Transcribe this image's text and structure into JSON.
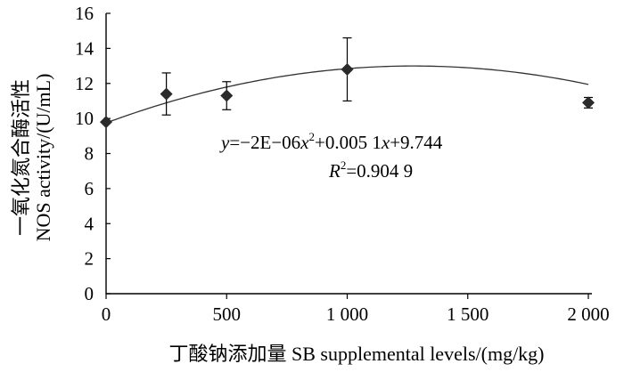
{
  "chart_data": {
    "type": "scatter",
    "xlabel": "丁酸钠添加量  SB supplemental levels/(mg/kg)",
    "ylabel_line1": "一氧化氮合酶活性",
    "ylabel_line2": "NOS activity/(U/mL)",
    "xlim": [
      0,
      2000
    ],
    "ylim": [
      0,
      16
    ],
    "x_ticks": [
      0,
      500,
      1000,
      1500,
      2000
    ],
    "x_tick_labels": [
      "0",
      "500",
      "1 000",
      "1 500",
      "2 000"
    ],
    "y_ticks": [
      0,
      2,
      4,
      6,
      8,
      10,
      12,
      14,
      16
    ],
    "y_tick_labels": [
      "0",
      "2",
      "4",
      "6",
      "8",
      "10",
      "12",
      "14",
      "16"
    ],
    "grid": false,
    "points": [
      {
        "x": 0,
        "y": 9.8,
        "err": 0.0
      },
      {
        "x": 250,
        "y": 11.4,
        "err": 1.2
      },
      {
        "x": 500,
        "y": 11.3,
        "err": 0.8
      },
      {
        "x": 1000,
        "y": 12.8,
        "err": 1.8
      },
      {
        "x": 2000,
        "y": 10.9,
        "err": 0.3
      }
    ],
    "marker": "diamond",
    "marker_color": "#2b2b2b",
    "trendline": {
      "type": "polynomial",
      "coefficients": [
        -2e-06,
        0.0051,
        9.744
      ],
      "color": "#333333"
    },
    "equation_text": {
      "y": "y",
      "eq1": "=−2E−06",
      "x1": "x",
      "sup2": "2",
      "eq2": "+0.005 1",
      "x2": "x",
      "eq3": "+9.744"
    },
    "r2_text": {
      "R": "R",
      "sup2": "2",
      "value": "=0.904 9"
    }
  }
}
